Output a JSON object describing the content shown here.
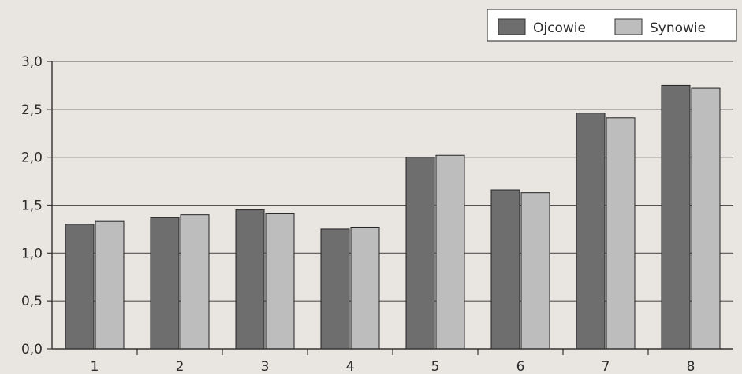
{
  "chart_data": {
    "type": "bar",
    "categories": [
      "1",
      "2",
      "3",
      "4",
      "5",
      "6",
      "7",
      "8"
    ],
    "series": [
      {
        "name": "Ojcowie",
        "values": [
          1.3,
          1.37,
          1.45,
          1.25,
          2.0,
          1.66,
          2.46,
          2.75
        ],
        "color": "#6e6e6e"
      },
      {
        "name": "Synowie",
        "values": [
          1.33,
          1.4,
          1.41,
          1.27,
          2.02,
          1.63,
          2.41,
          2.72
        ],
        "color": "#bdbdbd"
      }
    ],
    "ylim": [
      0,
      3.0
    ],
    "yticks": [
      "0,0",
      "0,5",
      "1,0",
      "1,5",
      "2,0",
      "2,5",
      "3,0"
    ],
    "ytick_values": [
      0,
      0.5,
      1.0,
      1.5,
      2.0,
      2.5,
      3.0
    ],
    "grid": "horizontal",
    "legend_position": "top-right"
  }
}
